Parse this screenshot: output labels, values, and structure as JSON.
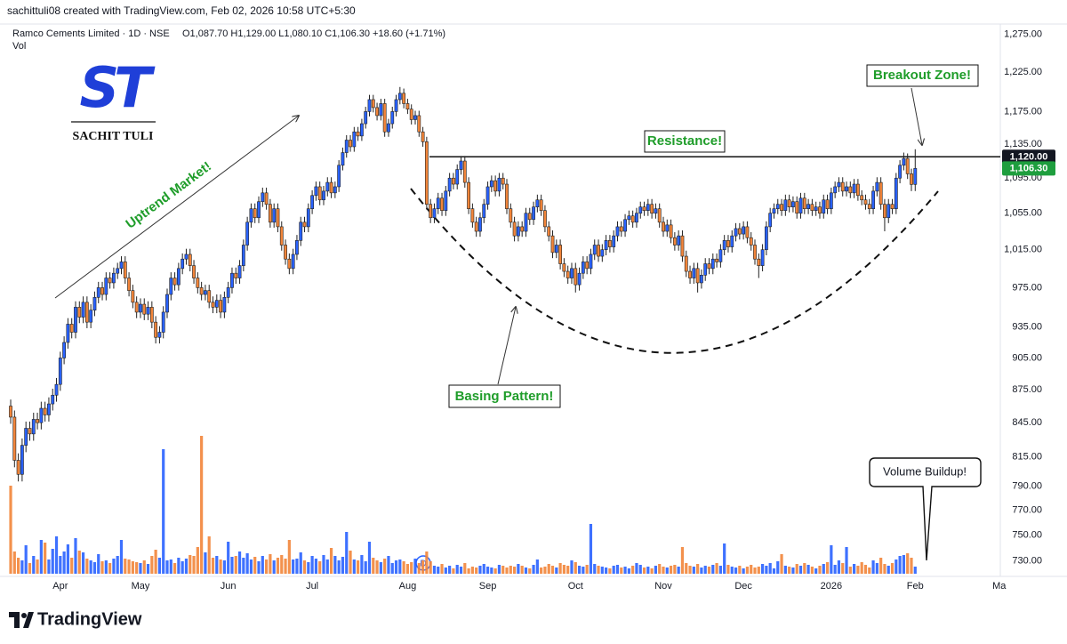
{
  "header": {
    "attribution": "sachittuli08 created with TradingView.com, Feb 02, 2026 10:58 UTC+5:30",
    "logo": "ST",
    "watermark": "SACHIT TULI"
  },
  "footer": {
    "brand": "TradingView"
  },
  "chart_data": {
    "type": "candlestick",
    "legend": {
      "symbol": "Ramco Cements Limited · 1D · NSE",
      "ohlc": "O1,087.70  H1,129.00  L1,080.10  C1,106.30  +18.60 (+1.71%)",
      "volume": "Vol"
    },
    "annotations": [
      "Uptrend Market!",
      "Resistance!",
      "Breakout Zone!",
      "Basing Pattern!",
      "Volume Buildup!"
    ],
    "dividend_marker": "D",
    "up_color": "#2962ff",
    "down_color": "#f2853a",
    "log": true,
    "grid": false,
    "xlim": [
      -2.8,
      259.3
    ],
    "xticks": [
      {
        "value": 13,
        "label": "Apr"
      },
      {
        "value": 34,
        "label": "May"
      },
      {
        "value": 57,
        "label": "Jun"
      },
      {
        "value": 79,
        "label": "Jul"
      },
      {
        "value": 104,
        "label": "Aug"
      },
      {
        "value": 125,
        "label": "Sep"
      },
      {
        "value": 148,
        "label": "Oct"
      },
      {
        "value": 171,
        "label": "Nov"
      },
      {
        "value": 192,
        "label": "Dec"
      },
      {
        "value": 215,
        "label": "2026"
      },
      {
        "value": 237,
        "label": "Feb"
      },
      {
        "value": 259,
        "label": "Ma"
      }
    ],
    "ylim": [
      718,
      1288
    ],
    "yticks": [
      {
        "value": 730,
        "label": "730.00"
      },
      {
        "value": 750,
        "label": "750.00"
      },
      {
        "value": 770,
        "label": "770.00"
      },
      {
        "value": 790,
        "label": "790.00"
      },
      {
        "value": 815,
        "label": "815.00"
      },
      {
        "value": 845,
        "label": "845.00"
      },
      {
        "value": 875,
        "label": "875.00"
      },
      {
        "value": 905,
        "label": "905.00"
      },
      {
        "value": 935,
        "label": "935.00"
      },
      {
        "value": 975,
        "label": "975.00"
      },
      {
        "value": 1015,
        "label": "1,015.00"
      },
      {
        "value": 1055,
        "label": "1,055.00"
      },
      {
        "value": 1095,
        "label": "1,095.00"
      },
      {
        "value": 1135,
        "label": "1,135.00"
      },
      {
        "value": 1175,
        "label": "1,175.00"
      },
      {
        "value": 1225,
        "label": "1,225.00"
      },
      {
        "value": 1275,
        "label": "1,275.00"
      }
    ],
    "resistance": {
      "value": 1120,
      "label": "1,120.00"
    },
    "last_price": {
      "value": 1106.3,
      "label": "1,106.30"
    },
    "open": [
      860,
      850,
      812,
      800,
      825,
      840,
      835,
      848,
      845,
      858,
      852,
      862,
      870,
      880,
      905,
      920,
      938,
      930,
      955,
      945,
      960,
      940,
      952,
      965,
      975,
      968,
      985,
      980,
      990,
      995,
      1002,
      985,
      972,
      960,
      950,
      958,
      948,
      955,
      940,
      925,
      930,
      950,
      968,
      985,
      978,
      995,
      1005,
      1010,
      998,
      985,
      975,
      968,
      972,
      960,
      955,
      962,
      950,
      965,
      975,
      990,
      985,
      998,
      1020,
      1045,
      1060,
      1050,
      1068,
      1078,
      1065,
      1045,
      1060,
      1040,
      1020,
      1005,
      995,
      1010,
      1025,
      1045,
      1040,
      1060,
      1075,
      1085,
      1070,
      1080,
      1090,
      1078,
      1085,
      1110,
      1125,
      1140,
      1132,
      1150,
      1145,
      1160,
      1175,
      1190,
      1180,
      1170,
      1185,
      1150,
      1160,
      1175,
      1190,
      1198,
      1185,
      1178,
      1165,
      1170,
      1150,
      1138,
      1065,
      1050,
      1060,
      1072,
      1058,
      1080,
      1095,
      1088,
      1105,
      1115,
      1090,
      1060,
      1045,
      1035,
      1050,
      1065,
      1085,
      1092,
      1080,
      1095,
      1088,
      1060,
      1045,
      1030,
      1040,
      1035,
      1055,
      1048,
      1062,
      1070,
      1058,
      1040,
      1030,
      1012,
      1020,
      1000,
      992,
      985,
      995,
      978,
      990,
      1002,
      995,
      1010,
      1020,
      1008,
      1015,
      1025,
      1018,
      1030,
      1040,
      1035,
      1048,
      1052,
      1045,
      1055,
      1062,
      1058,
      1065,
      1055,
      1060,
      1045,
      1035,
      1042,
      1028,
      1020,
      1030,
      1008,
      992,
      985,
      995,
      980,
      988,
      1000,
      995,
      1005,
      1002,
      1015,
      1025,
      1018,
      1030,
      1038,
      1032,
      1040,
      1028,
      1020,
      1005,
      998,
      1015,
      1040,
      1055,
      1060,
      1065,
      1058,
      1070,
      1062,
      1068,
      1055,
      1072,
      1060,
      1065,
      1058,
      1062,
      1055,
      1070,
      1060,
      1078,
      1085,
      1090,
      1080,
      1085,
      1078,
      1088,
      1075,
      1070,
      1065,
      1060,
      1080,
      1090,
      1065,
      1050,
      1065,
      1060,
      1095,
      1110,
      1118,
      1100,
      1087.7
    ],
    "high": [
      866,
      856,
      818,
      831,
      846,
      846,
      854,
      854,
      864,
      864,
      868,
      876,
      886,
      911,
      926,
      944,
      944,
      961,
      961,
      966,
      966,
      958,
      971,
      981,
      981,
      991,
      991,
      996,
      1001,
      1008,
      1008,
      991,
      978,
      966,
      964,
      964,
      961,
      961,
      946,
      936,
      956,
      974,
      991,
      991,
      1001,
      1011,
      1016,
      1016,
      1004,
      991,
      981,
      978,
      978,
      966,
      968,
      968,
      971,
      981,
      996,
      996,
      1004,
      1026,
      1051,
      1066,
      1066,
      1074,
      1084,
      1084,
      1071,
      1066,
      1066,
      1046,
      1026,
      1011,
      1016,
      1031,
      1051,
      1051,
      1066,
      1081,
      1091,
      1091,
      1086,
      1096,
      1096,
      1091,
      1116,
      1131,
      1146,
      1146,
      1156,
      1156,
      1166,
      1181,
      1196,
      1196,
      1186,
      1191,
      1191,
      1166,
      1181,
      1196,
      1206,
      1204,
      1191,
      1184,
      1176,
      1176,
      1156,
      1144,
      1071,
      1066,
      1078,
      1078,
      1086,
      1101,
      1101,
      1111,
      1121,
      1121,
      1096,
      1066,
      1051,
      1056,
      1071,
      1091,
      1098,
      1098,
      1101,
      1101,
      1094,
      1066,
      1051,
      1046,
      1046,
      1061,
      1061,
      1068,
      1076,
      1076,
      1064,
      1046,
      1036,
      1026,
      1026,
      1006,
      998,
      1001,
      1001,
      996,
      1008,
      1008,
      1016,
      1026,
      1026,
      1021,
      1031,
      1031,
      1036,
      1046,
      1046,
      1054,
      1058,
      1058,
      1061,
      1068,
      1068,
      1071,
      1071,
      1066,
      1066,
      1051,
      1048,
      1048,
      1034,
      1036,
      1036,
      1014,
      998,
      1001,
      1001,
      994,
      1006,
      1006,
      1011,
      1011,
      1021,
      1031,
      1031,
      1036,
      1044,
      1044,
      1046,
      1046,
      1034,
      1026,
      1011,
      1021,
      1046,
      1061,
      1066,
      1071,
      1071,
      1076,
      1076,
      1074,
      1074,
      1078,
      1078,
      1071,
      1071,
      1068,
      1068,
      1076,
      1076,
      1084,
      1091,
      1096,
      1096,
      1091,
      1091,
      1094,
      1094,
      1081,
      1076,
      1071,
      1086,
      1096,
      1096,
      1071,
      1071,
      1071,
      1101,
      1116,
      1125,
      1124,
      1106,
      1129
    ],
    "low": [
      844,
      806,
      794,
      794,
      819,
      829,
      829,
      839,
      839,
      846,
      846,
      856,
      864,
      874,
      899,
      914,
      924,
      924,
      939,
      939,
      934,
      934,
      946,
      959,
      962,
      962,
      974,
      974,
      984,
      989,
      979,
      966,
      954,
      944,
      944,
      942,
      942,
      934,
      919,
      919,
      924,
      944,
      962,
      972,
      972,
      989,
      999,
      992,
      979,
      969,
      962,
      962,
      954,
      949,
      949,
      944,
      944,
      959,
      969,
      979,
      979,
      992,
      1014,
      1039,
      1044,
      1044,
      1062,
      1059,
      1039,
      1039,
      1034,
      1014,
      999,
      989,
      989,
      1004,
      1019,
      1034,
      1034,
      1054,
      1069,
      1064,
      1064,
      1074,
      1072,
      1072,
      1079,
      1104,
      1119,
      1126,
      1126,
      1139,
      1139,
      1154,
      1169,
      1174,
      1164,
      1164,
      1144,
      1144,
      1154,
      1169,
      1184,
      1179,
      1172,
      1159,
      1159,
      1144,
      1132,
      1059,
      1044,
      1044,
      1054,
      1052,
      1052,
      1074,
      1082,
      1082,
      1099,
      1084,
      1054,
      1039,
      1029,
      1029,
      1044,
      1059,
      1079,
      1074,
      1074,
      1082,
      1054,
      1039,
      1024,
      1024,
      1029,
      1029,
      1042,
      1042,
      1056,
      1052,
      1034,
      1024,
      1006,
      1006,
      994,
      986,
      979,
      979,
      970,
      972,
      984,
      989,
      989,
      1004,
      1002,
      1002,
      1009,
      1012,
      1012,
      1024,
      1029,
      1029,
      1042,
      1039,
      1039,
      1049,
      1052,
      1052,
      1049,
      1049,
      1039,
      1029,
      1029,
      1022,
      1014,
      1014,
      1002,
      986,
      979,
      979,
      970,
      974,
      982,
      989,
      989,
      996,
      996,
      1009,
      1012,
      1012,
      1024,
      1026,
      1026,
      1022,
      1014,
      999,
      985,
      992,
      1009,
      1034,
      1049,
      1054,
      1052,
      1052,
      1056,
      1056,
      1049,
      1049,
      1054,
      1054,
      1052,
      1052,
      1049,
      1049,
      1054,
      1054,
      1072,
      1079,
      1074,
      1074,
      1072,
      1072,
      1069,
      1064,
      1059,
      1054,
      1054,
      1074,
      1059,
      1035,
      1044,
      1054,
      1054,
      1089,
      1104,
      1094,
      1080,
      1080.1
    ],
    "close": [
      850,
      812,
      800,
      825,
      840,
      835,
      848,
      845,
      858,
      852,
      862,
      870,
      880,
      905,
      920,
      938,
      930,
      955,
      945,
      960,
      940,
      952,
      965,
      975,
      968,
      985,
      980,
      990,
      995,
      1002,
      985,
      972,
      960,
      950,
      958,
      948,
      955,
      940,
      925,
      930,
      950,
      968,
      985,
      978,
      995,
      1005,
      1010,
      998,
      985,
      975,
      968,
      972,
      960,
      955,
      962,
      950,
      965,
      975,
      990,
      985,
      998,
      1020,
      1045,
      1060,
      1050,
      1068,
      1078,
      1065,
      1045,
      1060,
      1040,
      1020,
      1005,
      995,
      1010,
      1025,
      1045,
      1040,
      1060,
      1075,
      1085,
      1070,
      1080,
      1090,
      1078,
      1085,
      1110,
      1125,
      1140,
      1132,
      1150,
      1145,
      1160,
      1175,
      1190,
      1180,
      1170,
      1185,
      1150,
      1160,
      1175,
      1190,
      1198,
      1185,
      1178,
      1165,
      1170,
      1150,
      1138,
      1065,
      1050,
      1060,
      1072,
      1058,
      1080,
      1095,
      1088,
      1105,
      1115,
      1090,
      1060,
      1045,
      1035,
      1050,
      1065,
      1085,
      1092,
      1080,
      1095,
      1088,
      1060,
      1045,
      1030,
      1040,
      1035,
      1055,
      1048,
      1062,
      1070,
      1058,
      1040,
      1030,
      1012,
      1020,
      1000,
      992,
      985,
      995,
      978,
      990,
      1002,
      995,
      1010,
      1020,
      1008,
      1015,
      1025,
      1018,
      1030,
      1040,
      1035,
      1048,
      1052,
      1045,
      1055,
      1062,
      1058,
      1065,
      1055,
      1060,
      1045,
      1035,
      1042,
      1028,
      1020,
      1030,
      1008,
      992,
      985,
      995,
      980,
      988,
      1000,
      995,
      1005,
      1002,
      1015,
      1025,
      1018,
      1030,
      1038,
      1032,
      1040,
      1028,
      1020,
      1005,
      998,
      1015,
      1040,
      1055,
      1060,
      1065,
      1058,
      1070,
      1062,
      1068,
      1055,
      1072,
      1060,
      1065,
      1058,
      1062,
      1055,
      1070,
      1060,
      1078,
      1085,
      1090,
      1080,
      1085,
      1078,
      1088,
      1075,
      1070,
      1065,
      1060,
      1080,
      1090,
      1065,
      1050,
      1065,
      1060,
      1095,
      1110,
      1118,
      1100,
      1087.7,
      1106.3
    ],
    "volume": [
      990,
      250,
      180,
      150,
      320,
      120,
      200,
      160,
      380,
      350,
      160,
      280,
      420,
      200,
      250,
      330,
      180,
      400,
      260,
      240,
      170,
      150,
      130,
      220,
      140,
      150,
      120,
      170,
      200,
      380,
      170,
      160,
      140,
      130,
      120,
      150,
      110,
      200,
      270,
      180,
      1400,
      150,
      160,
      120,
      180,
      140,
      170,
      210,
      200,
      300,
      1550,
      240,
      420,
      180,
      200,
      160,
      150,
      360,
      190,
      200,
      250,
      180,
      230,
      160,
      190,
      140,
      200,
      160,
      220,
      150,
      180,
      210,
      170,
      380,
      160,
      170,
      240,
      150,
      130,
      200,
      170,
      140,
      210,
      160,
      290,
      200,
      150,
      190,
      470,
      260,
      160,
      150,
      210,
      140,
      360,
      180,
      150,
      130,
      170,
      200,
      120,
      150,
      160,
      140,
      110,
      130,
      170,
      120,
      150,
      250,
      140,
      90,
      80,
      110,
      70,
      90,
      60,
      100,
      80,
      120,
      60,
      80,
      70,
      90,
      110,
      80,
      70,
      60,
      100,
      90,
      70,
      90,
      80,
      110,
      90,
      70,
      60,
      100,
      160,
      70,
      80,
      110,
      90,
      70,
      120,
      100,
      90,
      150,
      130,
      90,
      80,
      100,
      560,
      110,
      90,
      80,
      70,
      60,
      90,
      100,
      70,
      80,
      60,
      90,
      120,
      100,
      70,
      80,
      60,
      90,
      110,
      80,
      70,
      90,
      100,
      80,
      300,
      120,
      90,
      80,
      110,
      70,
      90,
      80,
      100,
      120,
      90,
      340,
      100,
      80,
      70,
      90,
      60,
      80,
      100,
      70,
      80,
      110,
      90,
      120,
      60,
      140,
      220,
      90,
      80,
      70,
      110,
      90,
      120,
      100,
      80,
      60,
      90,
      110,
      130,
      320,
      100,
      150,
      120,
      300,
      80,
      110,
      90,
      130,
      100,
      70,
      150,
      120,
      180,
      110,
      90,
      120,
      160,
      200,
      210,
      230,
      180,
      80
    ]
  }
}
